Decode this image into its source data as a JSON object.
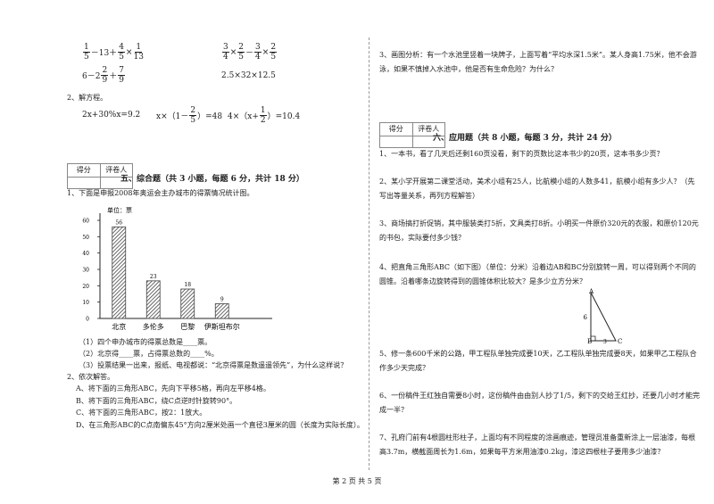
{
  "left": {
    "calc": [
      [
        {
          "n": "1",
          "d": "5"
        },
        "－13＋",
        {
          "n": "4",
          "d": "5"
        },
        "×",
        {
          "n": "1",
          "d": "13"
        }
      ],
      [
        {
          "n": "3",
          "d": "4"
        },
        "×",
        {
          "n": "2",
          "d": "5"
        },
        "－",
        {
          "n": "3",
          "d": "4"
        },
        "×",
        {
          "n": "2",
          "d": "5"
        }
      ],
      [
        "6－2",
        {
          "n": "2",
          "d": "9"
        },
        "＋",
        {
          "n": "7",
          "d": "9"
        }
      ],
      [
        "2.5×32×12.5"
      ]
    ],
    "q2": "2、解方程。",
    "equations": [
      [
        "2x+30%x=9.2"
      ],
      [
        "x×（1－",
        {
          "n": "2",
          "d": "5"
        },
        "）=48"
      ],
      [
        "4×（x+",
        {
          "n": "1",
          "d": "2"
        },
        "）=10.4"
      ]
    ],
    "score_box": [
      "得分",
      "评卷人"
    ],
    "section": "五、综合题（共 3 小题，每题 6 分，共计 18 分）",
    "q1": "1、下面是申报2008年奥运会主办城市的得票情况统计图。",
    "q1_subs": [
      "（1）四个申办城市的得票总数是____票。",
      "（2）北京得____票，占得票总数的____%。",
      "（3）投票结果一出来，报纸、电视都说：“北京得票是数遥遥领先”，为什么这样说？"
    ],
    "q2b": "2、依次解答。",
    "q2b_items": [
      "A、将下面的三角形ABC，先向下平移5格，再向左平移4格。",
      "B、将下面的三角形ABC，绕C点逆时针旋转90°。",
      "C、将下面的三角形ABC，按2：1放大。",
      "D、在三角形ABC的C点南偏东45°方向2厘米处画一个直径3厘米的圆（长度为实际长度）。"
    ]
  },
  "chart_data": {
    "type": "bar",
    "unit_label": "单位：票",
    "categories": [
      "北京",
      "多伦多",
      "巴黎",
      "伊斯坦布尔"
    ],
    "values": [
      56,
      23,
      18,
      9
    ],
    "ylim": [
      0,
      60
    ],
    "yticks": [
      0,
      10,
      20,
      30,
      40,
      50,
      60
    ],
    "color": "#444444"
  },
  "right": {
    "q3": "3、画图分析：有一个水池里竖着一块牌子，上面写着“平均水深1.5米”。某人身高1.75米，他不会游泳，如果不慎掉入水池中，他是否有生命危险？为什么？",
    "score_box": [
      "得分",
      "评卷人"
    ],
    "section": "六、应用题（共 8 小题，每题 3 分，共计 24 分）",
    "questions": [
      "1、一本书，看了几天后还剩160页没看，剩下的页数比这本书少的20页，这本书多少页？",
      "2、某小学开展第二课堂活动，美术小组有25人，比航模小组的人数多41，航模小组有多少人？（先写出等量关系，再列方程解答）",
      "3、商场搞打折促销，其中服装类打5折，文具类打8折。小明买一件原价320元的衣服，和原价120元的书包，实际要付多少钱？",
      "4、把直角三角形ABC（如下图）（单位：分米）沿着边AB和BC分别旋转一周，可以得到两个不同的圆锥。沿着哪条边旋转得到的圆锥体积比较大？是多少立方分米？",
      "5、修一条600千米的公路，甲工程队单独完成要10天，乙工程队单独完成要8天，如果甲乙工程队合作多少天完成？",
      "6、一份稿件王红独自需要8小时，这份稿件由由别人抄了1/5，剩下的交给王红抄，还要几小时才能完成一半？",
      "7、孔府门前有4根圆柱形柱子，上面均有不同程度的涂画痕迹，管理员准备重新涂上一层油漆，每根高3.7m，横截面周长为1.6m，如果每平方米用油漆0.2kg，漆这四根柱子要用多少油漆？"
    ],
    "figure_labels": [
      "A",
      "6",
      "B",
      "C",
      "3"
    ]
  },
  "footer": "第 2 页 共 5 页"
}
